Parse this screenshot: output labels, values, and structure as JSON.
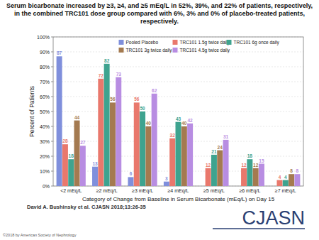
{
  "chart_data": {
    "type": "bar",
    "title": "Serum bicarbonate increased by ≥3, ≥4, and ≥5 mEq/L in 52%, 39%, and 22% of patients, respectively, in the combined TRC101 dose group compared with 6%, 3% and 0% of placebo-treated patients, respectively.",
    "x_label": "Category of Change from Baseline in Serum Bicarbonate (mEq/L) on Day 15",
    "y_label": "Percent of Patients",
    "categories": [
      "<2 mEq/L",
      "≥2 mEq/L",
      "≥3 mEq/L",
      "≥4 mEq/L",
      "≥5 mEq/L",
      "≥6 mEq/L",
      "≥7 mEq/L"
    ],
    "series": [
      {
        "name": "Pooled Placebo",
        "color": "#7f8fdc",
        "values": [
          87,
          13,
          6,
          3,
          0,
          0,
          0
        ],
        "value_labels": [
          "87",
          "13",
          "6",
          "3",
          null,
          null,
          null
        ]
      },
      {
        "name": "TRC101 1.5g twice daily",
        "color": "#e9786c",
        "values": [
          28,
          72,
          56,
          32,
          12,
          12,
          4
        ]
      },
      {
        "name": "TRC101 6g once daily",
        "color": "#3ea38f",
        "values": [
          18,
          82,
          50,
          43,
          21,
          18,
          4
        ]
      },
      {
        "name": "TRC101 3g twice daily",
        "color": "#a47a50",
        "values": [
          44,
          56,
          40,
          40,
          24,
          12,
          8
        ]
      },
      {
        "name": "TRC101 4.5g twice daily",
        "color": "#b88de2",
        "values": [
          27,
          73,
          62,
          42,
          31,
          15,
          8
        ]
      }
    ],
    "ylim": [
      0,
      100
    ],
    "yticks": [
      {
        "value": 0,
        "label": "0%"
      },
      {
        "value": 10,
        "label": "10%"
      },
      {
        "value": 20,
        "label": "20%"
      },
      {
        "value": 30,
        "label": "30%"
      },
      {
        "value": 40,
        "label": "40%"
      },
      {
        "value": 50,
        "label": "50%"
      },
      {
        "value": 60,
        "label": "60%"
      },
      {
        "value": 70,
        "label": "70%"
      },
      {
        "value": 80,
        "label": "80%"
      },
      {
        "value": 90,
        "label": "90%"
      },
      {
        "value": 100,
        "label": "100%"
      }
    ],
    "grid": true,
    "legend": "top",
    "data_labels": true,
    "annotations": [
      "David A. Bushinsky et al. CJASN 2018;13:26-35",
      "©2018 by American Society of Nephrology",
      "CJASN"
    ]
  }
}
